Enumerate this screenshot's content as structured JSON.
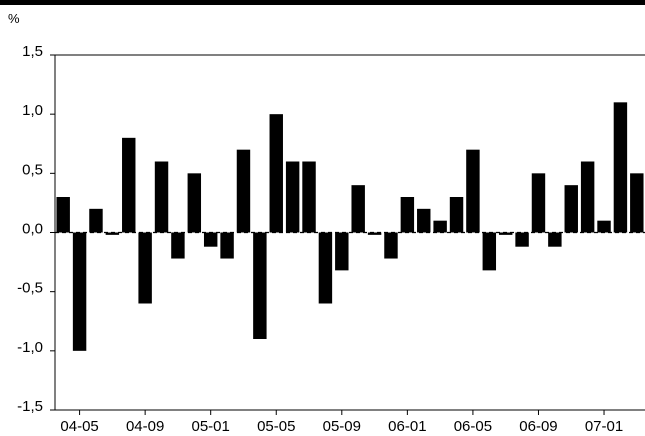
{
  "chart_data": {
    "type": "bar",
    "unit": "%",
    "ylim": [
      -1.5,
      1.5
    ],
    "yticks": [
      "1,5",
      "1,0",
      "0,5",
      "0,0",
      "-0,5",
      "-1,0",
      "-1,5"
    ],
    "ytick_values": [
      1.5,
      1.0,
      0.5,
      0.0,
      -0.5,
      -1.0,
      -1.5
    ],
    "xtick_labels": [
      "04-05",
      "04-09",
      "05-01",
      "05-05",
      "05-09",
      "06-01",
      "06-05",
      "06-09",
      "07-01"
    ],
    "xtick_positions": [
      1,
      5,
      9,
      13,
      17,
      21,
      25,
      29,
      33
    ],
    "grid": false,
    "bar_color": "#000000",
    "values": [
      0.3,
      -1.0,
      0.2,
      -0.02,
      0.8,
      -0.6,
      0.6,
      -0.22,
      0.5,
      -0.12,
      -0.22,
      0.7,
      -0.9,
      1.0,
      0.6,
      0.6,
      -0.6,
      -0.32,
      0.4,
      -0.02,
      -0.22,
      0.3,
      0.2,
      0.1,
      0.3,
      0.7,
      -0.32,
      -0.02,
      -0.12,
      0.5,
      -0.12,
      0.4,
      0.6,
      0.1,
      1.1,
      0.5
    ]
  }
}
